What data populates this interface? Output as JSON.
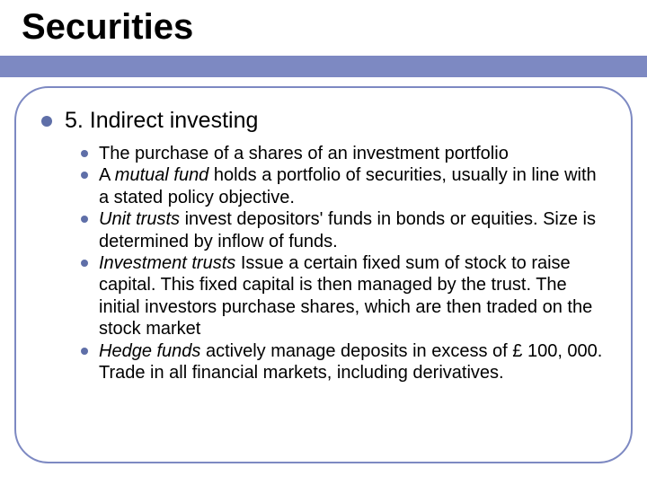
{
  "colors": {
    "band": "#7d89c2",
    "border": "#7d89c2",
    "bullet": "#5f6fa8",
    "text": "#000000",
    "background": "#ffffff"
  },
  "title": "Securities",
  "heading": "5. Indirect investing",
  "items": [
    {
      "prefix": "",
      "italic": "",
      "body": "The purchase of a shares of an investment portfolio"
    },
    {
      "prefix": "A ",
      "italic": "mutual fund",
      "body": " holds a portfolio of securities, usually in line with a stated policy objective."
    },
    {
      "prefix": "",
      "italic": "Unit trusts",
      "body": " invest depositors' funds in bonds or equities.  Size is determined by inflow of funds."
    },
    {
      "prefix": "",
      "italic": "Investment trusts",
      "body": "  Issue a certain fixed sum of stock to raise capital.  This fixed capital is then managed by the trust.  The initial investors purchase shares, which are then traded on the stock market"
    },
    {
      "prefix": "",
      "italic": "Hedge funds",
      "body": " actively manage deposits in excess of £ 100, 000. Trade in all financial markets, including derivatives."
    }
  ]
}
